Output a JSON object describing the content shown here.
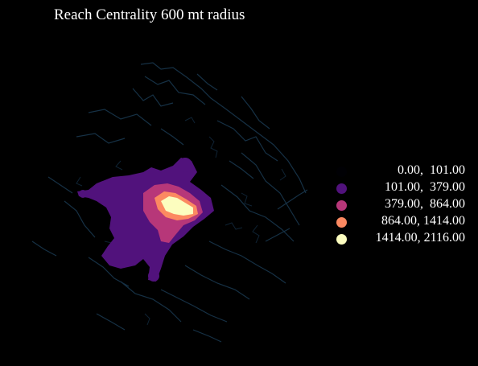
{
  "title": "Reach Centrality 600 mt radius",
  "colors": {
    "background": "#000000",
    "network": "#1a3a52",
    "class0": "#000004",
    "class1": "#51127c",
    "class2": "#b73779",
    "class3": "#fc8961",
    "class4": "#fcfdbf"
  },
  "legend": [
    {
      "label": "0.00,  101.00",
      "color": "#000004"
    },
    {
      "label": "101.00,  379.00",
      "color": "#51127c"
    },
    {
      "label": "379.00,  864.00",
      "color": "#b73779"
    },
    {
      "label": "864.00, 1414.00",
      "color": "#fc8961"
    },
    {
      "label": "1414.00, 2116.00",
      "color": "#fcfdbf"
    }
  ]
}
